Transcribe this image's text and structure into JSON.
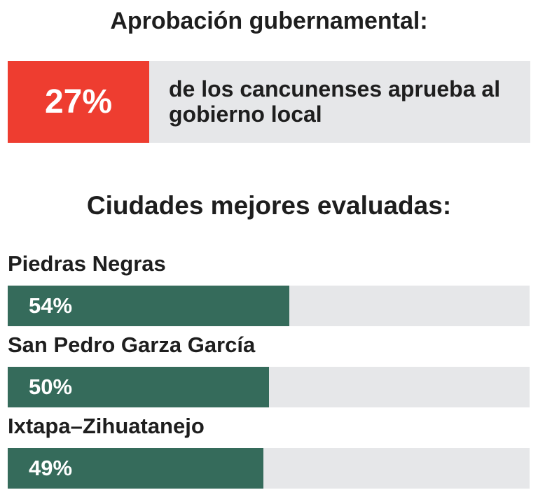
{
  "approval": {
    "title": "Aprobación gubernamental:",
    "value_label": "27%",
    "value": 27,
    "description": "de los cancunenses aprueba al gobierno local",
    "colors": {
      "fill": "#ee3d30",
      "track": "#e6e7e9"
    }
  },
  "cities": {
    "title": "Ciudades mejores evaluadas:"
  },
  "chart_data": {
    "type": "bar",
    "orientation": "horizontal",
    "title": "Ciudades mejores evaluadas:",
    "categories": [
      "Piedras Negras",
      "San Pedro Garza García",
      "Ixtapa–Zihuatanejo"
    ],
    "values": [
      54,
      50,
      49
    ],
    "value_labels": [
      "54%",
      "50%",
      "49%"
    ],
    "xlim": [
      0,
      100
    ],
    "grid": false,
    "colors": {
      "fill": "#356b5b",
      "track": "#e6e7e9"
    }
  }
}
